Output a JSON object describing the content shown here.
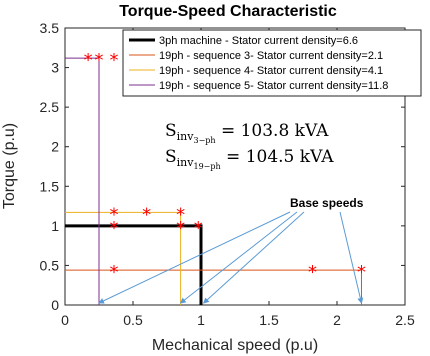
{
  "chart_data": {
    "type": "line",
    "title": "Torque-Speed Characteristic",
    "xlabel": "Mechanical speed (p.u)",
    "ylabel": "Torque (p.u)",
    "xlim": [
      0,
      2.5
    ],
    "ylim": [
      0,
      3.5
    ],
    "xticks": [
      "0",
      "0.5",
      "1",
      "1.5",
      "2",
      "2.5"
    ],
    "yticks": [
      "0",
      "0.5",
      "1",
      "1.5",
      "2",
      "2.5",
      "3",
      "3.5"
    ],
    "legend_position": "top-right",
    "series": [
      {
        "name": "3ph machine - Stator current density=6.6",
        "color": "#000000",
        "points": [
          [
            0,
            1
          ],
          [
            1,
            1
          ],
          [
            1,
            0
          ]
        ]
      },
      {
        "name": "19ph - sequence 3- Stator current density=2.1",
        "color": "#d95319",
        "points": [
          [
            0,
            0.44
          ],
          [
            2.18,
            0.44
          ],
          [
            2.18,
            0
          ]
        ]
      },
      {
        "name": "19ph - sequence 4- Stator current density=4.1",
        "color": "#edb120",
        "points": [
          [
            0,
            1.17
          ],
          [
            0.85,
            1.17
          ],
          [
            0.85,
            0
          ]
        ]
      },
      {
        "name": "19ph - sequence 5- Stator current density=11.8",
        "color": "#7e2f8e",
        "points": [
          [
            0,
            3.12
          ],
          [
            0.25,
            3.12
          ],
          [
            0.25,
            0
          ]
        ]
      }
    ],
    "markers": {
      "symbol": "*",
      "color": "#ff0000",
      "points": [
        [
          0.17,
          3.12
        ],
        [
          0.25,
          3.12
        ],
        [
          0.36,
          3.12
        ],
        [
          0.36,
          1.17
        ],
        [
          0.6,
          1.17
        ],
        [
          0.85,
          1.17
        ],
        [
          0.36,
          1.0
        ],
        [
          0.85,
          1.0
        ],
        [
          0.98,
          1.0
        ],
        [
          0.36,
          0.44
        ],
        [
          1.82,
          0.44
        ],
        [
          2.18,
          0.44
        ]
      ]
    },
    "equations": [
      {
        "lhs": "S",
        "sub": "inv",
        "subsub": "3−ph",
        "rhs": " = 103.8 kVA"
      },
      {
        "lhs": "S",
        "sub": "inv",
        "subsub": "19−ph",
        "rhs": " = 104.5 kVA"
      }
    ],
    "annotation": {
      "text": "Base speeds",
      "arrow_targets": [
        [
          0.25,
          0
        ],
        [
          0.85,
          0
        ],
        [
          1.02,
          0
        ],
        [
          2.18,
          0
        ]
      ]
    }
  }
}
